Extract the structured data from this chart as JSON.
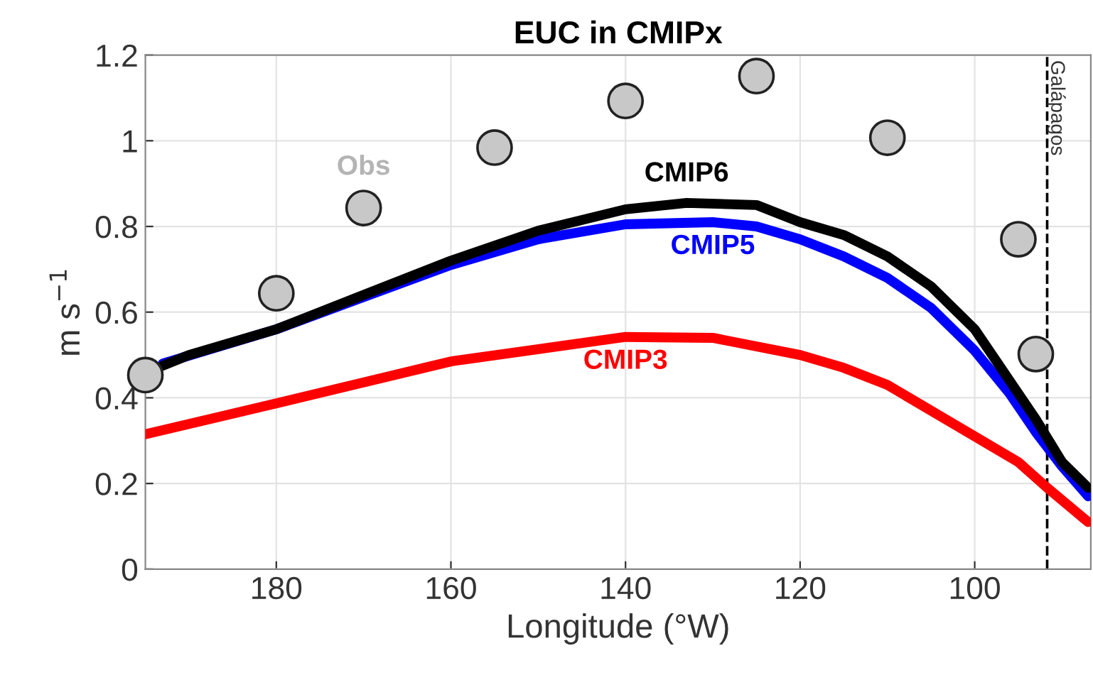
{
  "chart_data": {
    "type": "line",
    "title": "EUC in CMIPx",
    "xlabel": "Longitude (°W)",
    "ylabel": "m s$^{−1}$",
    "xlim": [
      195,
      86.7
    ],
    "xticks": [
      180,
      160,
      140,
      120,
      100
    ],
    "ylim": [
      0,
      1.2
    ],
    "yticks": [
      0,
      0.2,
      0.4,
      0.6,
      0.8,
      1,
      1.2
    ],
    "grid": true,
    "series": [
      {
        "name": "CMIP3",
        "color": "#ff0000",
        "x": [
          195,
          180,
          160,
          140,
          130,
          120,
          115,
          110,
          100,
          95,
          91.7,
          87
        ],
        "values": [
          0.315,
          0.387,
          0.485,
          0.542,
          0.54,
          0.5,
          0.47,
          0.43,
          0.31,
          0.25,
          0.19,
          0.11
        ]
      },
      {
        "name": "CMIP5",
        "color": "#0000ff",
        "x": [
          193,
          180,
          160,
          150,
          140,
          130,
          125,
          120,
          115,
          110,
          105,
          100,
          96,
          93,
          90,
          87
        ],
        "values": [
          0.48,
          0.56,
          0.71,
          0.77,
          0.805,
          0.81,
          0.8,
          0.77,
          0.73,
          0.68,
          0.61,
          0.51,
          0.41,
          0.32,
          0.24,
          0.17
        ]
      },
      {
        "name": "CMIP6",
        "color": "#000000",
        "x": [
          193,
          190,
          180,
          170,
          160,
          150,
          140,
          133,
          125,
          120,
          115,
          110,
          105,
          100,
          96,
          93,
          90,
          87
        ],
        "values": [
          0.475,
          0.5,
          0.56,
          0.64,
          0.72,
          0.79,
          0.84,
          0.855,
          0.85,
          0.81,
          0.78,
          0.73,
          0.66,
          0.56,
          0.44,
          0.35,
          0.25,
          0.19
        ]
      },
      {
        "name": "Obs",
        "type": "scatter",
        "marker": "circle",
        "color": "#c8c8c8",
        "x": [
          195,
          180,
          170,
          155,
          140,
          125,
          110,
          95,
          93
        ],
        "values": [
          0.453,
          0.644,
          0.843,
          0.984,
          1.093,
          1.151,
          1.007,
          0.77,
          0.502
        ]
      }
    ],
    "ref_lines": [
      {
        "axis": "x",
        "value": 91.7,
        "label": "Galápagos",
        "line_style": "dashed",
        "color": "#000000"
      }
    ]
  }
}
